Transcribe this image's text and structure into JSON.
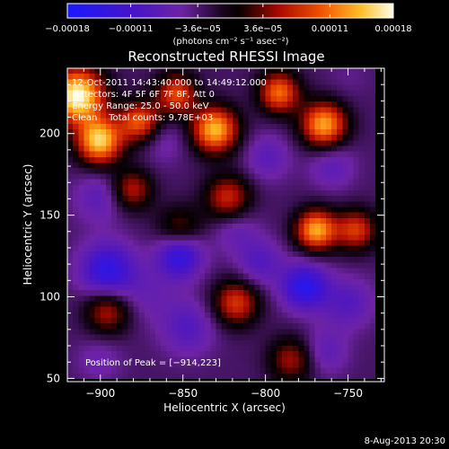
{
  "chart_data": {
    "type": "heatmap",
    "title": "Reconstructed RHESSI Image",
    "xlabel": "Heliocentric X (arcsec)",
    "ylabel": "Heliocentric Y (arcsec)",
    "xlim": [
      -920,
      -728
    ],
    "ylim": [
      48,
      240
    ],
    "x_ticks": [
      -900,
      -850,
      -800,
      -750
    ],
    "x_tick_labels": [
      "−900",
      "−850",
      "−800",
      "−750"
    ],
    "y_ticks": [
      50,
      100,
      150,
      200
    ],
    "y_tick_labels": [
      "50",
      "100",
      "150",
      "200"
    ],
    "colorbar": {
      "range": [
        -0.00018,
        0.00018
      ],
      "ticks": [
        -0.00018,
        -0.00011,
        -3.6e-05,
        3.6e-05,
        0.00011,
        0.00018
      ],
      "tick_labels": [
        "−0.00018",
        "−0.00011",
        "−3.6e−05",
        "3.6e−05",
        "0.00011",
        "0.00018"
      ],
      "unit_label": "(photons cm⁻² s⁻¹ asec⁻²)"
    },
    "info_lines": [
      "12-Oct-2011 14:43:40.000 to 14:49:12.000",
      "Detectors: 4F 5F 6F 7F 8F, Att 0",
      "Energy Range: 25.0 - 50.0 keV",
      "Clean    Total counts: 9.78E+03"
    ],
    "peak_label": "Position of Peak = [−914,223]",
    "peak": {
      "x": -914,
      "y": 223
    },
    "blobs": [
      {
        "x": -914,
        "y": 223,
        "v": 1.0,
        "s": 12
      },
      {
        "x": -900,
        "y": 195,
        "v": 0.85,
        "s": 10
      },
      {
        "x": -875,
        "y": 207,
        "v": 0.55,
        "s": 9
      },
      {
        "x": -852,
        "y": 224,
        "v": 0.5,
        "s": 9
      },
      {
        "x": -860,
        "y": 195,
        "v": -0.35,
        "s": 10
      },
      {
        "x": -900,
        "y": 160,
        "v": -0.45,
        "s": 11
      },
      {
        "x": -880,
        "y": 165,
        "v": 0.35,
        "s": 9
      },
      {
        "x": -895,
        "y": 115,
        "v": -0.8,
        "s": 12
      },
      {
        "x": -895,
        "y": 90,
        "v": 0.35,
        "s": 10
      },
      {
        "x": -870,
        "y": 100,
        "v": -0.35,
        "s": 12
      },
      {
        "x": -850,
        "y": 140,
        "v": 0.25,
        "s": 10
      },
      {
        "x": -850,
        "y": 125,
        "v": -0.85,
        "s": 10
      },
      {
        "x": -845,
        "y": 80,
        "v": -0.5,
        "s": 12
      },
      {
        "x": -828,
        "y": 202,
        "v": 0.8,
        "s": 10
      },
      {
        "x": -820,
        "y": 160,
        "v": 0.4,
        "s": 10
      },
      {
        "x": -815,
        "y": 140,
        "v": -0.4,
        "s": 10
      },
      {
        "x": -815,
        "y": 95,
        "v": 0.45,
        "s": 10
      },
      {
        "x": -800,
        "y": 120,
        "v": -0.5,
        "s": 10
      },
      {
        "x": -795,
        "y": 185,
        "v": -0.45,
        "s": 10
      },
      {
        "x": -788,
        "y": 225,
        "v": 0.6,
        "s": 9
      },
      {
        "x": -772,
        "y": 105,
        "v": -0.85,
        "s": 10
      },
      {
        "x": -765,
        "y": 140,
        "v": 0.75,
        "s": 9
      },
      {
        "x": -760,
        "y": 205,
        "v": 0.75,
        "s": 10
      },
      {
        "x": -755,
        "y": 180,
        "v": -0.45,
        "s": 10
      },
      {
        "x": -745,
        "y": 235,
        "v": -0.25,
        "s": 10
      },
      {
        "x": -740,
        "y": 140,
        "v": 0.45,
        "s": 9
      },
      {
        "x": -745,
        "y": 95,
        "v": -0.5,
        "s": 11
      },
      {
        "x": -760,
        "y": 65,
        "v": -0.45,
        "s": 10
      },
      {
        "x": -780,
        "y": 60,
        "v": 0.3,
        "s": 10
      },
      {
        "x": -900,
        "y": 60,
        "v": -0.35,
        "s": 10
      }
    ],
    "background_level": -0.18
  },
  "footer": {
    "date": "8-Aug-2013 20:30"
  }
}
